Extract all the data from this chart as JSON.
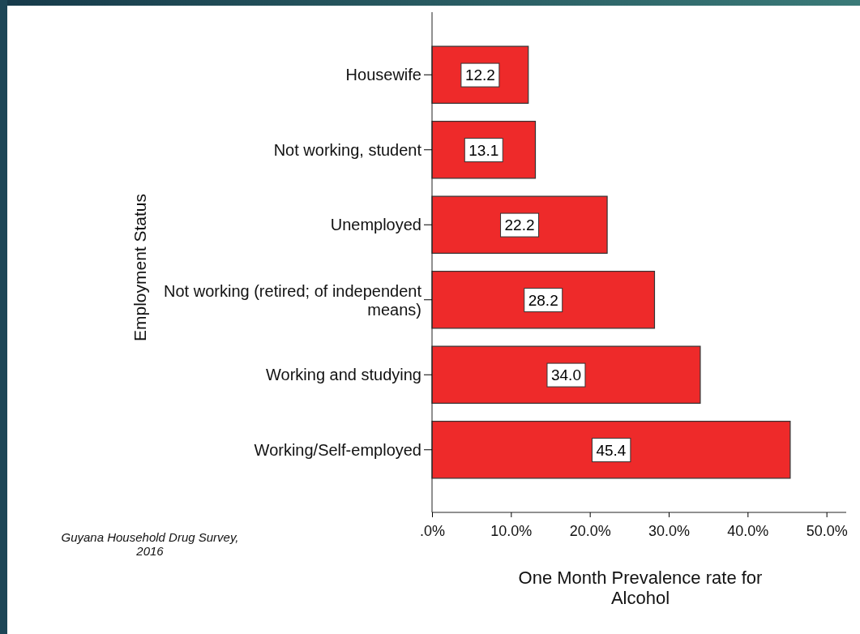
{
  "chart_data": {
    "type": "bar",
    "orientation": "horizontal",
    "xlabel": "One Month Prevalence rate for Alcohol",
    "ylabel": "Employment Status",
    "categories": [
      "Housewife",
      "Not working, student",
      "Unemployed",
      "Not working (retired; of independent means)",
      "Working and studying",
      "Working/Self-employed"
    ],
    "values": [
      12.2,
      13.1,
      22.2,
      28.2,
      34.0,
      45.4
    ],
    "value_labels": [
      "12.2",
      "13.1",
      "22.2",
      "28.2",
      "34.0",
      "45.4"
    ],
    "color": "#ee2a2a",
    "xlim": [
      0,
      52.5
    ],
    "xticks": [
      {
        "value": 0,
        "label": ".0%"
      },
      {
        "value": 10,
        "label": "10.0%"
      },
      {
        "value": 20,
        "label": "20.0%"
      },
      {
        "value": 30,
        "label": "30.0%"
      },
      {
        "value": 40,
        "label": "40.0%"
      },
      {
        "value": 50,
        "label": "50.0%"
      }
    ],
    "annotations": [
      "Guyana Household Drug Survey, 2016"
    ]
  }
}
